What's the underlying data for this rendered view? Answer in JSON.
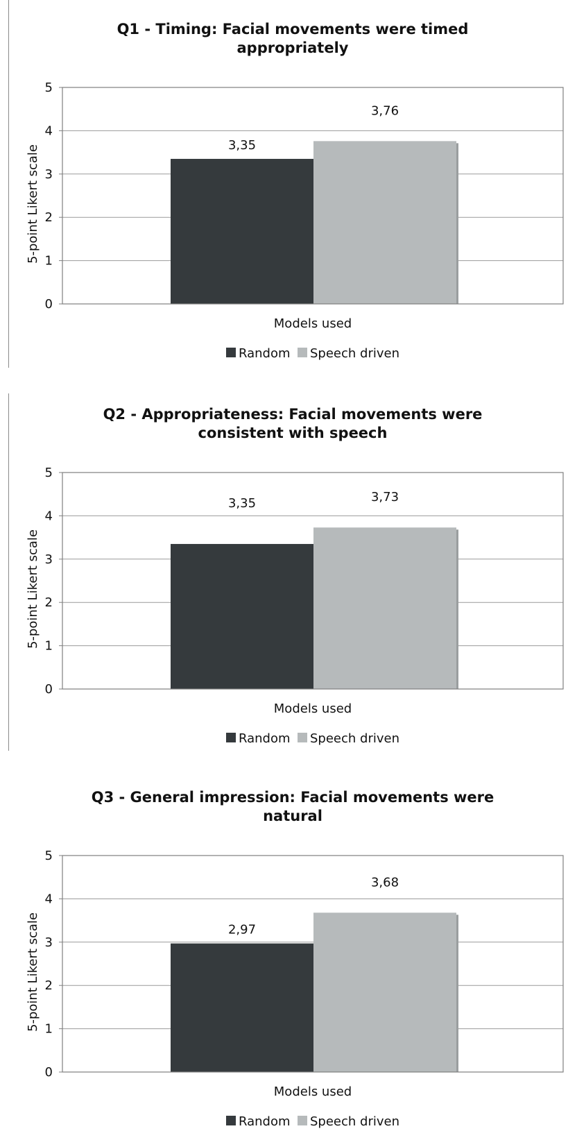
{
  "chart_data": [
    {
      "type": "bar",
      "title": "Q1 - Timing: Facial movements were timed appropriately",
      "title_lines": [
        "Q1 - Timing: Facial movements were timed",
        "appropriately"
      ],
      "categories": [
        ""
      ],
      "series": [
        {
          "name": "Random",
          "values": [
            3.35
          ],
          "label": "3,35"
        },
        {
          "name": "Speech driven",
          "values": [
            3.76
          ],
          "label": "3,76"
        }
      ],
      "xlabel": "Models used",
      "ylabel": "5-point Likert scale",
      "ylim": [
        0,
        5
      ],
      "yticks": [
        "0",
        "1",
        "2",
        "3",
        "4",
        "5"
      ],
      "grid": true,
      "legend": "bottom"
    },
    {
      "type": "bar",
      "title": "Q2 - Appropriateness: Facial movements were consistent with speech",
      "title_lines": [
        "Q2 - Appropriateness: Facial movements were",
        "consistent with speech"
      ],
      "categories": [
        ""
      ],
      "series": [
        {
          "name": "Random",
          "values": [
            3.35
          ],
          "label": "3,35"
        },
        {
          "name": "Speech driven",
          "values": [
            3.73
          ],
          "label": "3,73"
        }
      ],
      "xlabel": "Models used",
      "ylabel": "5-point Likert scale",
      "ylim": [
        0,
        5
      ],
      "yticks": [
        "0",
        "1",
        "2",
        "3",
        "4",
        "5"
      ],
      "grid": true,
      "legend": "bottom"
    },
    {
      "type": "bar",
      "title": "Q3 - General impression: Facial movements were natural",
      "title_lines": [
        "Q3 - General impression: Facial movements were",
        "natural"
      ],
      "categories": [
        ""
      ],
      "series": [
        {
          "name": "Random",
          "values": [
            2.97
          ],
          "label": "2,97"
        },
        {
          "name": "Speech driven",
          "values": [
            3.68
          ],
          "label": "3,68"
        }
      ],
      "xlabel": "Models used",
      "ylabel": "5-point Likert scale",
      "ylim": [
        0,
        5
      ],
      "yticks": [
        "0",
        "1",
        "2",
        "3",
        "4",
        "5"
      ],
      "grid": true,
      "legend": "bottom"
    }
  ],
  "colors": {
    "random": "#353a3d",
    "speech_driven": "#b6babb",
    "speech_driven_shadow": "#9a9e9f",
    "gridline": "#9a9a9a",
    "frame": "#7f7f7f",
    "separator": "#8a8a8a"
  }
}
